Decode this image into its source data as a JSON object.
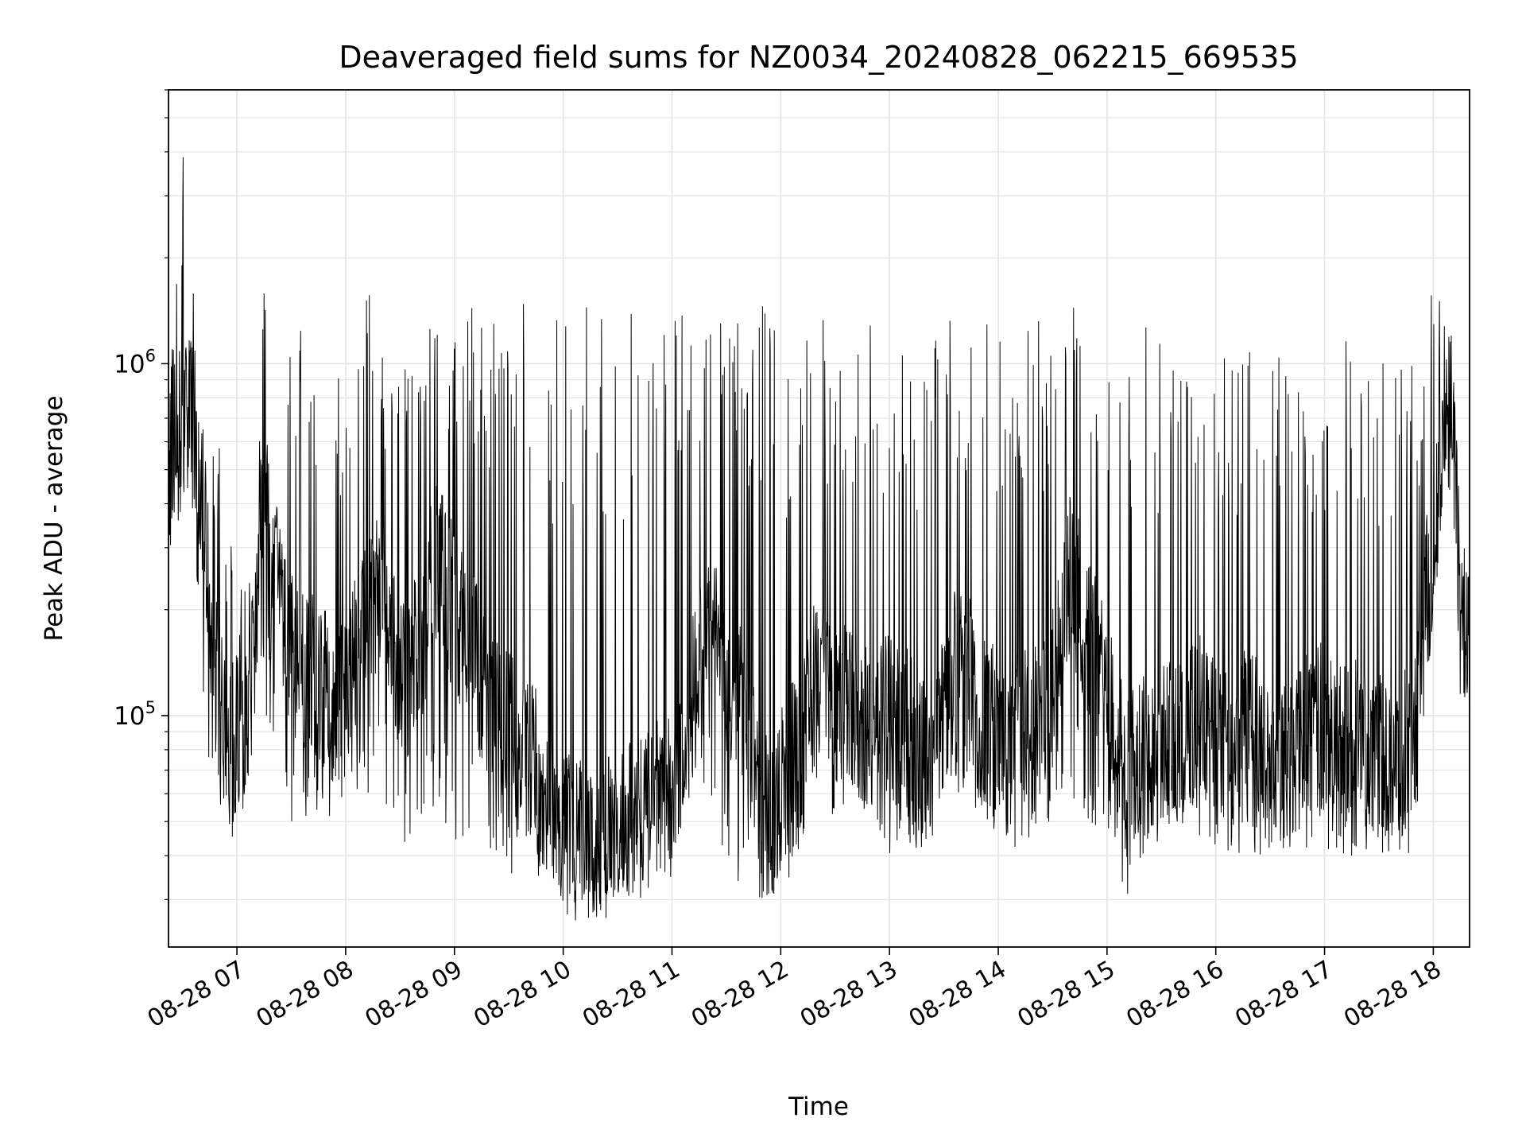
{
  "chart_data": {
    "type": "line",
    "title": "Deaveraged field sums for NZ0034_20240828_062215_669535",
    "xlabel": "Time",
    "ylabel": "Peak ADU - average",
    "xlim": [
      "2024-08-28 06:22:15",
      "2024-08-28 18:20:00"
    ],
    "ylim": [
      22000,
      6000000
    ],
    "yscale": "log",
    "grid": true,
    "x_ticks": [
      "08-28 07",
      "08-28 08",
      "08-28 09",
      "08-28 10",
      "08-28 11",
      "08-28 12",
      "08-28 13",
      "08-28 14",
      "08-28 15",
      "08-28 16",
      "08-28 17",
      "08-28 18"
    ],
    "y_ticks": [
      {
        "value": 100000,
        "base": "10",
        "exp": "5"
      },
      {
        "value": 1000000,
        "base": "10",
        "exp": "6"
      }
    ],
    "series": [
      {
        "color": "#000000",
        "x": [
          "06:22",
          "06:30",
          "06:35",
          "06:40",
          "06:45",
          "06:50",
          "06:55",
          "07:00",
          "07:05",
          "07:10",
          "07:15",
          "07:20",
          "07:25",
          "07:30",
          "07:40",
          "07:50",
          "08:00",
          "08:10",
          "08:20",
          "08:30",
          "08:40",
          "08:50",
          "09:00",
          "09:10",
          "09:20",
          "09:30",
          "09:40",
          "09:50",
          "10:00",
          "10:10",
          "10:20",
          "10:30",
          "10:40",
          "10:50",
          "11:00",
          "11:10",
          "11:20",
          "11:30",
          "11:40",
          "11:50",
          "12:00",
          "12:10",
          "12:20",
          "12:30",
          "12:40",
          "12:50",
          "13:00",
          "13:10",
          "13:20",
          "13:30",
          "13:40",
          "13:50",
          "14:00",
          "14:10",
          "14:20",
          "14:30",
          "14:40",
          "14:50",
          "15:00",
          "15:10",
          "15:20",
          "15:30",
          "15:40",
          "15:50",
          "16:00",
          "16:10",
          "16:20",
          "16:30",
          "16:40",
          "16:50",
          "17:00",
          "17:10",
          "17:20",
          "17:30",
          "17:40",
          "17:50",
          "17:55",
          "18:00",
          "18:05",
          "18:10",
          "18:15",
          "18:20"
        ],
        "base": [
          450000,
          700000,
          750000,
          500000,
          200000,
          120000,
          80000,
          90000,
          100000,
          150000,
          500000,
          300000,
          180000,
          150000,
          130000,
          120000,
          110000,
          180000,
          250000,
          120000,
          150000,
          280000,
          200000,
          150000,
          100000,
          90000,
          80000,
          60000,
          45000,
          45000,
          45000,
          45000,
          50000,
          55000,
          60000,
          100000,
          200000,
          130000,
          100000,
          50000,
          60000,
          80000,
          130000,
          110000,
          100000,
          95000,
          100000,
          90000,
          70000,
          110000,
          150000,
          100000,
          90000,
          100000,
          90000,
          120000,
          250000,
          170000,
          110000,
          70000,
          75000,
          80000,
          90000,
          100000,
          90000,
          80000,
          95000,
          80000,
          70000,
          90000,
          95000,
          80000,
          85000,
          80000,
          75000,
          90000,
          200000,
          300000,
          700000,
          800000,
          200000,
          150000
        ],
        "peak": [
          700000,
          4300000,
          1900000,
          1000000,
          500000,
          700000,
          400000,
          200000,
          300000,
          200000,
          1900000,
          400000,
          300000,
          1300000,
          1200000,
          1200000,
          1200000,
          1800000,
          1200000,
          1300000,
          1400000,
          1500000,
          1500000,
          1500000,
          1400000,
          1500000,
          1500000,
          1400000,
          1500000,
          1500000,
          1500000,
          1500000,
          1500000,
          1400000,
          1500000,
          1600000,
          1700000,
          1500000,
          1400000,
          1600000,
          1400000,
          1400000,
          1400000,
          1300000,
          1300000,
          1300000,
          1400000,
          1400000,
          1400000,
          1400000,
          1400000,
          1300000,
          1300000,
          1200000,
          1300000,
          1500000,
          1500000,
          1300000,
          1300000,
          1200000,
          1300000,
          1200000,
          1300000,
          1200000,
          1200000,
          1200000,
          1100000,
          1200000,
          1200000,
          1100000,
          1100000,
          1200000,
          1100000,
          1100000,
          1000000,
          1000000,
          1000000,
          2200000,
          1400000,
          1300000,
          200000,
          160000
        ],
        "trough": [
          280000,
          600000,
          400000,
          110000,
          70000,
          50000,
          45000,
          45000,
          50000,
          80000,
          100000,
          90000,
          70000,
          50000,
          50000,
          50000,
          50000,
          60000,
          60000,
          40000,
          50000,
          45000,
          40000,
          45000,
          40000,
          35000,
          35000,
          35000,
          28000,
          30000,
          30000,
          31000,
          33000,
          33000,
          35000,
          60000,
          60000,
          35000,
          33000,
          30000,
          30000,
          40000,
          60000,
          50000,
          60000,
          50000,
          40000,
          40000,
          40000,
          50000,
          60000,
          50000,
          45000,
          40000,
          45000,
          50000,
          60000,
          50000,
          45000,
          30000,
          40000,
          45000,
          50000,
          45000,
          38000,
          38000,
          40000,
          38000,
          40000,
          40000,
          40000,
          40000,
          40000,
          40000,
          40000,
          40000,
          100000,
          200000,
          500000,
          400000,
          100000,
          110000
        ]
      }
    ]
  }
}
